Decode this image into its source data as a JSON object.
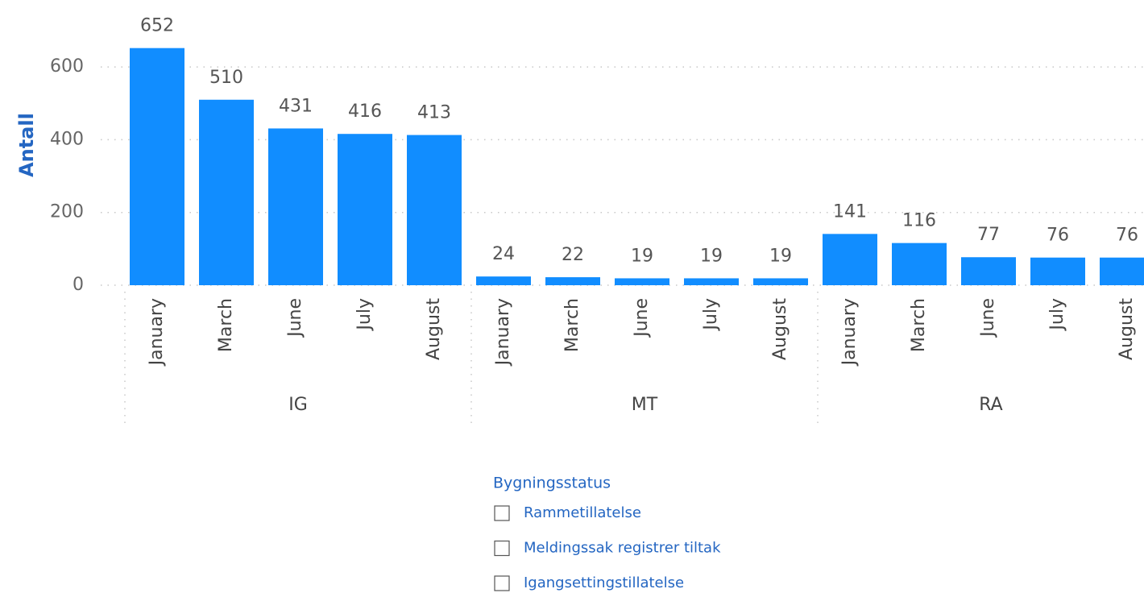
{
  "chart_data": {
    "type": "bar",
    "y_label": "Antall",
    "color": "#118dff",
    "groups": [
      {
        "name": "IG",
        "categories": [
          "January",
          "March",
          "June",
          "July",
          "August"
        ],
        "values": [
          652,
          510,
          431,
          416,
          413
        ]
      },
      {
        "name": "MT",
        "categories": [
          "January",
          "March",
          "June",
          "July",
          "August"
        ],
        "values": [
          24,
          22,
          19,
          19,
          19
        ]
      },
      {
        "name": "RA",
        "categories": [
          "January",
          "March",
          "June",
          "July",
          "August"
        ],
        "values": [
          141,
          116,
          77,
          76,
          76
        ]
      }
    ],
    "ylim": [
      0,
      700
    ],
    "yticks": [
      0,
      200,
      400,
      600
    ],
    "grid": true
  },
  "slicer": {
    "title": "Bygningsstatus",
    "items": [
      "Rammetillatelse",
      "Meldingssak registrer tiltak",
      "Igangsettingstillatelse"
    ]
  }
}
